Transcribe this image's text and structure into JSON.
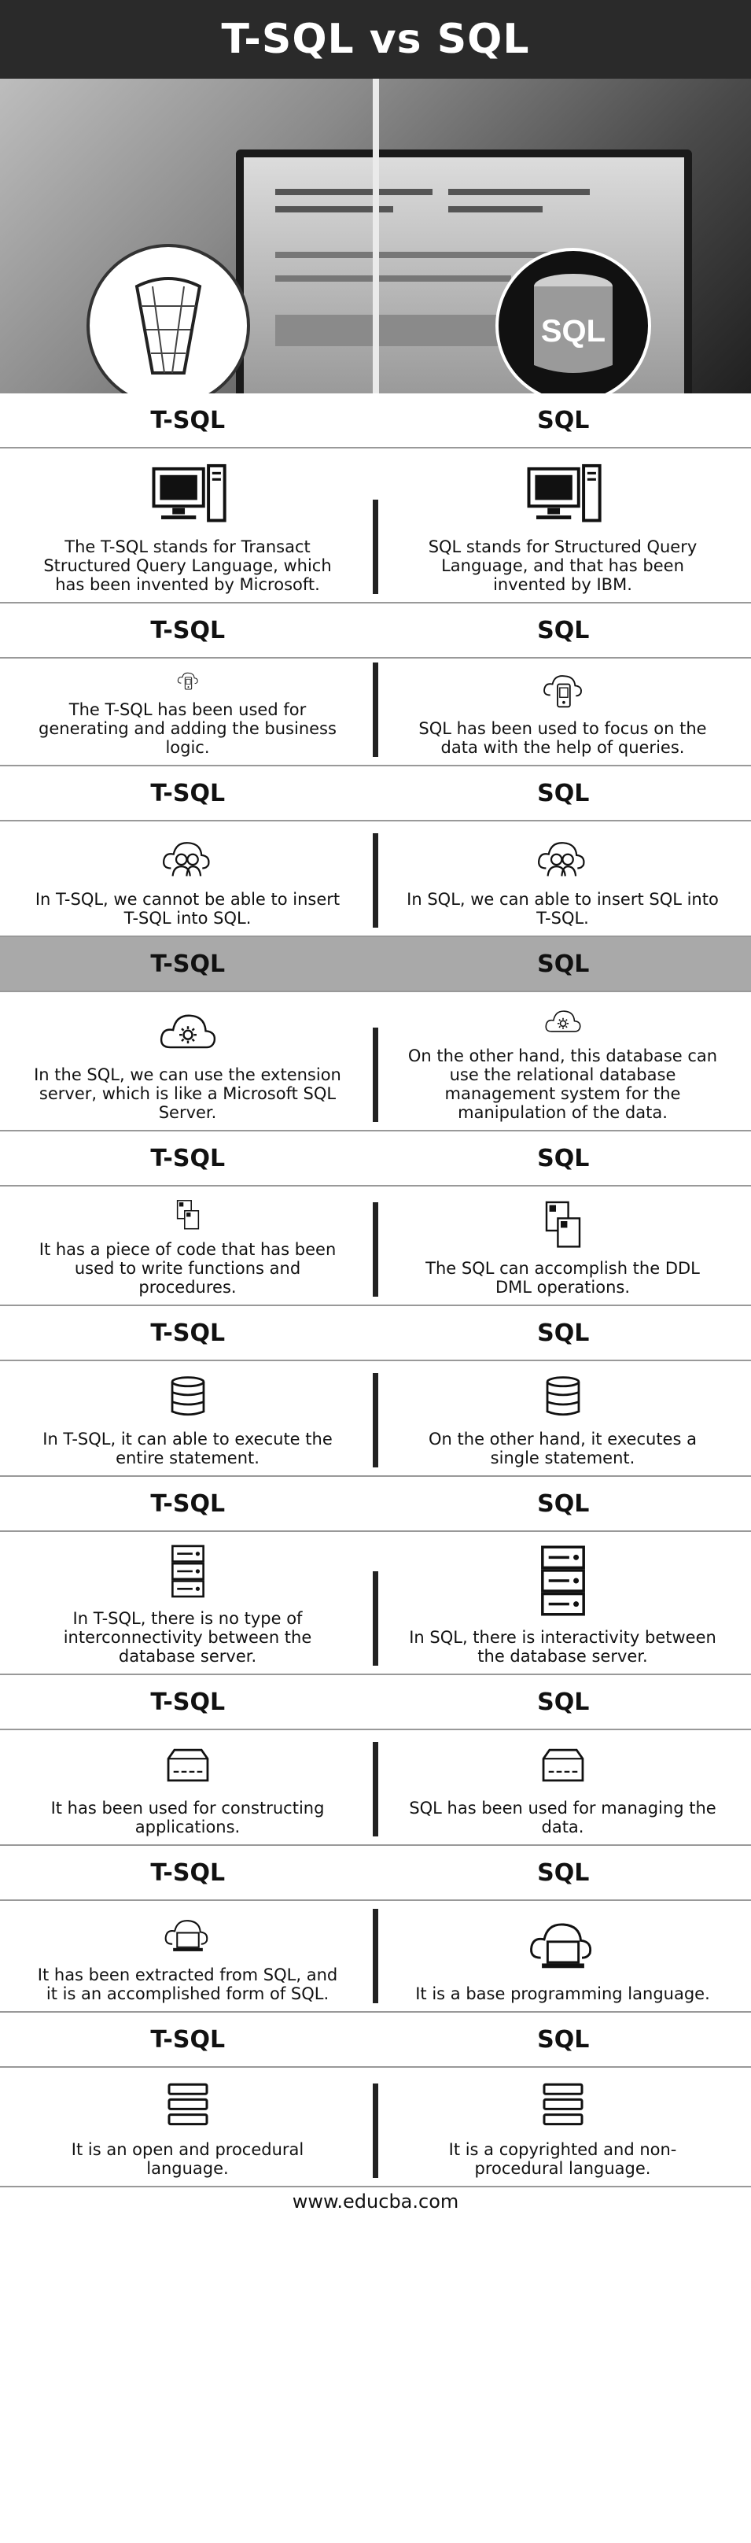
{
  "title": "T-SQL vs SQL",
  "hero": {
    "right_logo_text": "SQL"
  },
  "rows": [
    {
      "left_header": "T-SQL",
      "right_header": "SQL",
      "left_icon": "desktop-computer-icon",
      "right_icon": "desktop-computer-icon",
      "left_text": "The T-SQL stands for Transact Structured Query Language, which has been invented by Microsoft.",
      "right_text": "SQL stands for Structured Query Language, and that has been invented by IBM."
    },
    {
      "left_header": "T-SQL",
      "right_header": "SQL",
      "left_icon": "cloud-phone-icon",
      "right_icon": "cloud-phone-icon",
      "left_text": "The T-SQL has been used for generating and adding the business logic.",
      "right_text": "SQL has been used to focus on the data with the help of queries."
    },
    {
      "left_header": "T-SQL",
      "right_header": "SQL",
      "left_icon": "cloud-users-icon",
      "right_icon": "cloud-users-icon",
      "left_text": "In T-SQL, we cannot be able to insert T-SQL into SQL.",
      "right_text": "In SQL, we can able to insert SQL into T-SQL."
    },
    {
      "left_header": "T-SQL",
      "right_header": "SQL",
      "left_icon": "cloud-gear-icon",
      "right_icon": "cloud-gear-icon",
      "left_text": "In the SQL, we can use the extension server, which is like a Microsoft SQL Server.",
      "right_text": "On the other hand, this database can use the relational database management system for the manipulation of the data."
    },
    {
      "left_header": "T-SQL",
      "right_header": "SQL",
      "left_icon": "documents-icon",
      "right_icon": "documents-icon",
      "left_text": "It has a piece of code that has been used to write functions and procedures.",
      "right_text": "The SQL can accomplish the DDL DML operations."
    },
    {
      "left_header": "T-SQL",
      "right_header": "SQL",
      "left_icon": "database-icon",
      "right_icon": "database-icon",
      "left_text": "In T-SQL, it can able to execute the entire statement.",
      "right_text": "On the other hand, it executes a single statement."
    },
    {
      "left_header": "T-SQL",
      "right_header": "SQL",
      "left_icon": "server-rack-icon",
      "right_icon": "server-rack-icon",
      "left_text": "In T-SQL, there is no type of interconnectivity between the database server.",
      "right_text": "In SQL, there is interactivity between the database server."
    },
    {
      "left_header": "T-SQL",
      "right_header": "SQL",
      "left_icon": "hard-drive-icon",
      "right_icon": "hard-drive-icon",
      "left_text": "It has been used for constructing applications.",
      "right_text": "SQL has been used for managing the data."
    },
    {
      "left_header": "T-SQL",
      "right_header": "SQL",
      "left_icon": "cloud-laptop-icon",
      "right_icon": "cloud-laptop-icon",
      "left_text": "It has been extracted from SQL, and it is an accomplished form of SQL.",
      "right_text": "It is a base programming language."
    },
    {
      "left_header": "T-SQL",
      "right_header": "SQL",
      "left_icon": "stack-icon",
      "right_icon": "stack-icon",
      "left_text": "It is an open and procedural language.",
      "right_text": "It is a copyrighted and non-procedural language."
    }
  ],
  "footer": "www.educba.com"
}
